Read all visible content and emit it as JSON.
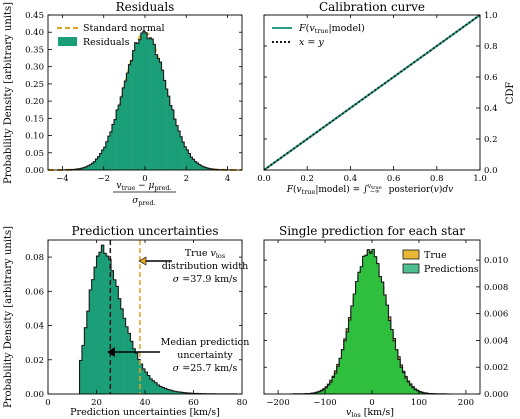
{
  "colors": {
    "teal": "#2a9d84",
    "fill_green": "#1a9e77",
    "gold": "#e0a526",
    "legend_gold": "#e8b735",
    "legend_green": "#4fbf8f",
    "bright_green": "#2fbf3f",
    "edge": "#1a1a1a"
  },
  "chart_data": [
    {
      "type": "histogram",
      "title": "Residuals",
      "xlabel": "(v_true − μ_pred.) / σ_pred.",
      "ylabel": "Probability Density [arbitrary units]",
      "xlim": [
        -4.7,
        4.7
      ],
      "ylim": [
        0,
        0.45
      ],
      "xticks": [
        -4,
        -2,
        0,
        2,
        4
      ],
      "xtick_labels": [
        "−4",
        "−2",
        "0",
        "2",
        "4"
      ],
      "yticks": [
        0,
        0.05,
        0.1,
        0.15,
        0.2,
        0.25,
        0.3,
        0.35,
        0.4,
        0.45
      ],
      "ytick_labels": [
        "0.00",
        "0.05",
        "0.10",
        "0.15",
        "0.20",
        "0.25",
        "0.30",
        "0.35",
        "0.40",
        "0.45"
      ],
      "grid": false,
      "legend_position": "top-left",
      "series": [
        {
          "name": "Standard normal",
          "kind": "curve",
          "distribution": "normal",
          "mean": 0,
          "std": 1,
          "color": "#e0a526",
          "dashed": true
        },
        {
          "name": "Residuals",
          "kind": "histogram",
          "distribution": "normal",
          "mean": 0.0,
          "std": 1.04,
          "peak": 0.395,
          "bin_width": 0.1,
          "range": [
            -4.2,
            4.2
          ],
          "color": "#1a9e77"
        }
      ]
    },
    {
      "type": "line",
      "title": "Calibration curve",
      "xlabel": "F(v_true|model) = ∫₋∞^v_true posterior(v) dv",
      "ylabel": "CDF",
      "xlim": [
        0,
        1
      ],
      "ylim": [
        0,
        1
      ],
      "xticks": [
        0,
        0.2,
        0.4,
        0.6,
        0.8,
        1.0
      ],
      "xtick_labels": [
        "0.0",
        "0.2",
        "0.4",
        "0.6",
        "0.8",
        "1.0"
      ],
      "yticks": [
        0,
        0.2,
        0.4,
        0.6,
        0.8,
        1.0
      ],
      "ytick_labels": [
        "0.0",
        "0.2",
        "0.4",
        "0.6",
        "0.8",
        "1.0"
      ],
      "grid": false,
      "legend_position": "top-left",
      "series": [
        {
          "name": "F(v_true|model)",
          "x": [
            0,
            1
          ],
          "y": [
            0,
            1
          ],
          "color": "#2a9d84",
          "dashed": false
        },
        {
          "name": "x = y",
          "x": [
            0,
            1
          ],
          "y": [
            0,
            1
          ],
          "color": "#1a1a1a",
          "dashed": true
        }
      ]
    },
    {
      "type": "histogram",
      "title": "Prediction uncertainties",
      "xlabel": "Prediction uncertainties [km/s]",
      "ylabel": "Probability Density [arbitrary units]",
      "xlim": [
        0,
        80
      ],
      "ylim": [
        0,
        0.09
      ],
      "xticks": [
        0,
        20,
        40,
        60,
        80
      ],
      "xtick_labels": [
        "0",
        "20",
        "40",
        "60",
        "80"
      ],
      "yticks": [
        0,
        0.02,
        0.04,
        0.06,
        0.08
      ],
      "ytick_labels": [
        "0.00",
        "0.02",
        "0.04",
        "0.06",
        "0.08"
      ],
      "grid": false,
      "series": [
        {
          "name": "Prediction uncertainties",
          "kind": "histogram",
          "distribution": "lognormal",
          "mode": 22.5,
          "peak": 0.085,
          "bin_width": 1,
          "range": [
            13,
            78
          ],
          "color": "#1a9e77"
        }
      ],
      "vlines": [
        {
          "x": 25.7,
          "color": "#1a1a1a",
          "dashed": true
        },
        {
          "x": 37.9,
          "color": "#e0a526",
          "dashed": true
        }
      ],
      "annotations": [
        {
          "lines": [
            "True v_los",
            "distribution width",
            "σ = 37.9 km/s"
          ],
          "arrow_to": 37.9
        },
        {
          "lines": [
            "Median prediction",
            "uncertainty",
            "σ = 25.7 km/s"
          ],
          "arrow_to": 25.7
        }
      ]
    },
    {
      "type": "histogram",
      "title": "Single prediction for each star",
      "xlabel": "v_los [km/s]",
      "ylabel": "",
      "xlim": [
        -230,
        230
      ],
      "ylim": [
        0,
        0.0115
      ],
      "xticks": [
        -200,
        -100,
        0,
        100,
        200
      ],
      "xtick_labels": [
        "−200",
        "−100",
        "0",
        "100",
        "200"
      ],
      "yticks": [
        0,
        0.002,
        0.004,
        0.006,
        0.008,
        0.01
      ],
      "ytick_labels": [
        "0.000",
        "0.002",
        "0.004",
        "0.006",
        "0.008",
        "0.010"
      ],
      "grid": false,
      "legend_position": "top-right",
      "series": [
        {
          "name": "True",
          "kind": "histogram",
          "distribution": "normal",
          "mean": -5,
          "std": 38,
          "peak": 0.0105,
          "bin_width": 5,
          "range": [
            -175,
            170
          ],
          "color": "#e8b735"
        },
        {
          "name": "Predictions",
          "kind": "histogram",
          "distribution": "normal",
          "mean": -5,
          "std": 37,
          "peak": 0.0108,
          "bin_width": 5,
          "range": [
            -175,
            170
          ],
          "color": "#2fbf3f"
        }
      ]
    }
  ]
}
